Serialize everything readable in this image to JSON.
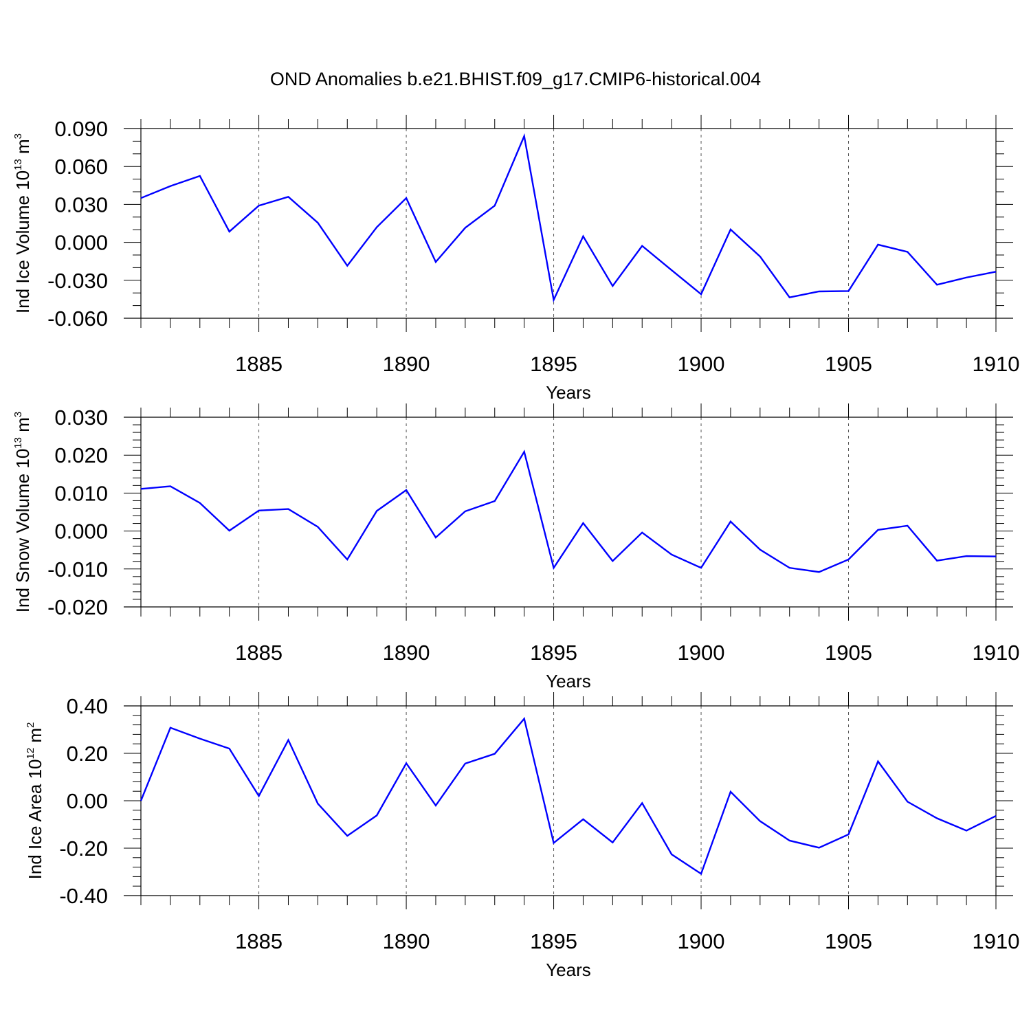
{
  "figure_title": "OND Anomalies b.e21.BHIST.f09_g17.CMIP6-historical.004",
  "colors": {
    "series": "#0000ff",
    "axis": "#000000",
    "grid": "#555555"
  },
  "chart_data": [
    {
      "type": "line",
      "id": "ice-volume",
      "title": "",
      "xlabel": "Years",
      "ylabel": {
        "prefix": "Ind Ice Volume 10",
        "exponent": "13",
        "unit": " m",
        "unit_exponent": "3"
      },
      "xlim": [
        1881,
        1910
      ],
      "ylim": [
        -0.06,
        0.09
      ],
      "x_ticks": [
        1885,
        1890,
        1895,
        1900,
        1905,
        1910
      ],
      "x_tick_labels": [
        "1885",
        "1890",
        "1895",
        "1900",
        "1905",
        "1910"
      ],
      "y_ticks": [
        -0.06,
        -0.03,
        0.0,
        0.03,
        0.06,
        0.09
      ],
      "y_tick_labels": [
        "-0.060",
        "-0.030",
        "0.000",
        "0.030",
        "0.060",
        "0.090"
      ],
      "y_minor_step": 0.01,
      "grid": "vertical-dashed",
      "series": [
        {
          "name": "Ind Ice Volume",
          "x": [
            1881,
            1882,
            1883,
            1884,
            1885,
            1886,
            1887,
            1888,
            1889,
            1890,
            1891,
            1892,
            1893,
            1894,
            1895,
            1896,
            1897,
            1898,
            1899,
            1900,
            1901,
            1902,
            1903,
            1904,
            1905,
            1906,
            1907,
            1908,
            1909,
            1910
          ],
          "values": [
            0.035,
            0.0445,
            0.0525,
            0.0085,
            0.029,
            0.036,
            0.0155,
            -0.0185,
            0.012,
            0.035,
            -0.0155,
            0.0115,
            0.029,
            0.084,
            -0.0455,
            0.0048,
            -0.0345,
            -0.0028,
            -0.022,
            -0.041,
            0.0102,
            -0.0112,
            -0.0435,
            -0.0388,
            -0.0385,
            -0.0018,
            -0.0075,
            -0.0335,
            -0.0278,
            -0.0232
          ]
        }
      ]
    },
    {
      "type": "line",
      "id": "snow-volume",
      "title": "",
      "xlabel": "Years",
      "ylabel": {
        "prefix": "Ind Snow Volume 10",
        "exponent": "13",
        "unit": " m",
        "unit_exponent": "3"
      },
      "xlim": [
        1881,
        1910
      ],
      "ylim": [
        -0.02,
        0.03
      ],
      "x_ticks": [
        1885,
        1890,
        1895,
        1900,
        1905,
        1910
      ],
      "x_tick_labels": [
        "1885",
        "1890",
        "1895",
        "1900",
        "1905",
        "1910"
      ],
      "y_ticks": [
        -0.02,
        -0.01,
        0.0,
        0.01,
        0.02,
        0.03
      ],
      "y_tick_labels": [
        "-0.020",
        "-0.010",
        "0.000",
        "0.010",
        "0.020",
        "0.030"
      ],
      "y_minor_step": 0.002,
      "grid": "vertical-dashed",
      "series": [
        {
          "name": "Ind Snow Volume",
          "x": [
            1881,
            1882,
            1883,
            1884,
            1885,
            1886,
            1887,
            1888,
            1889,
            1890,
            1891,
            1892,
            1893,
            1894,
            1895,
            1896,
            1897,
            1898,
            1899,
            1900,
            1901,
            1902,
            1903,
            1904,
            1905,
            1906,
            1907,
            1908,
            1909,
            1910
          ],
          "values": [
            0.0111,
            0.0118,
            0.0074,
            0.0001,
            0.0054,
            0.0058,
            0.0011,
            -0.0075,
            0.0053,
            0.0108,
            -0.0017,
            0.0052,
            0.0079,
            0.0209,
            -0.0097,
            0.0021,
            -0.0079,
            -0.0004,
            -0.0062,
            -0.0097,
            0.0025,
            -0.0049,
            -0.0097,
            -0.0108,
            -0.0075,
            0.0003,
            0.0014,
            -0.0078,
            -0.0066,
            -0.0067
          ]
        }
      ]
    },
    {
      "type": "line",
      "id": "ice-area",
      "title": "",
      "xlabel": "Years",
      "ylabel": {
        "prefix": "Ind Ice Area 10",
        "exponent": "12",
        "unit": " m",
        "unit_exponent": "2"
      },
      "xlim": [
        1881,
        1910
      ],
      "ylim": [
        -0.4,
        0.4
      ],
      "x_ticks": [
        1885,
        1890,
        1895,
        1900,
        1905,
        1910
      ],
      "x_tick_labels": [
        "1885",
        "1890",
        "1895",
        "1900",
        "1905",
        "1910"
      ],
      "y_ticks": [
        -0.4,
        -0.2,
        0.0,
        0.2,
        0.4
      ],
      "y_tick_labels": [
        "-0.40",
        "-0.20",
        "0.00",
        "0.20",
        "0.40"
      ],
      "y_minor_step": 0.04,
      "grid": "vertical-dashed",
      "series": [
        {
          "name": "Ind Ice Area",
          "x": [
            1881,
            1882,
            1883,
            1884,
            1885,
            1886,
            1887,
            1888,
            1889,
            1890,
            1891,
            1892,
            1893,
            1894,
            1895,
            1896,
            1897,
            1898,
            1899,
            1900,
            1901,
            1902,
            1903,
            1904,
            1905,
            1906,
            1907,
            1908,
            1909,
            1910
          ],
          "values": [
            0.0,
            0.308,
            0.262,
            0.22,
            0.02,
            0.256,
            -0.012,
            -0.148,
            -0.062,
            0.158,
            -0.02,
            0.157,
            0.198,
            0.346,
            -0.178,
            -0.078,
            -0.176,
            -0.01,
            -0.226,
            -0.308,
            0.038,
            -0.086,
            -0.168,
            -0.198,
            -0.142,
            0.166,
            -0.004,
            -0.074,
            -0.126,
            -0.064
          ]
        }
      ]
    }
  ]
}
